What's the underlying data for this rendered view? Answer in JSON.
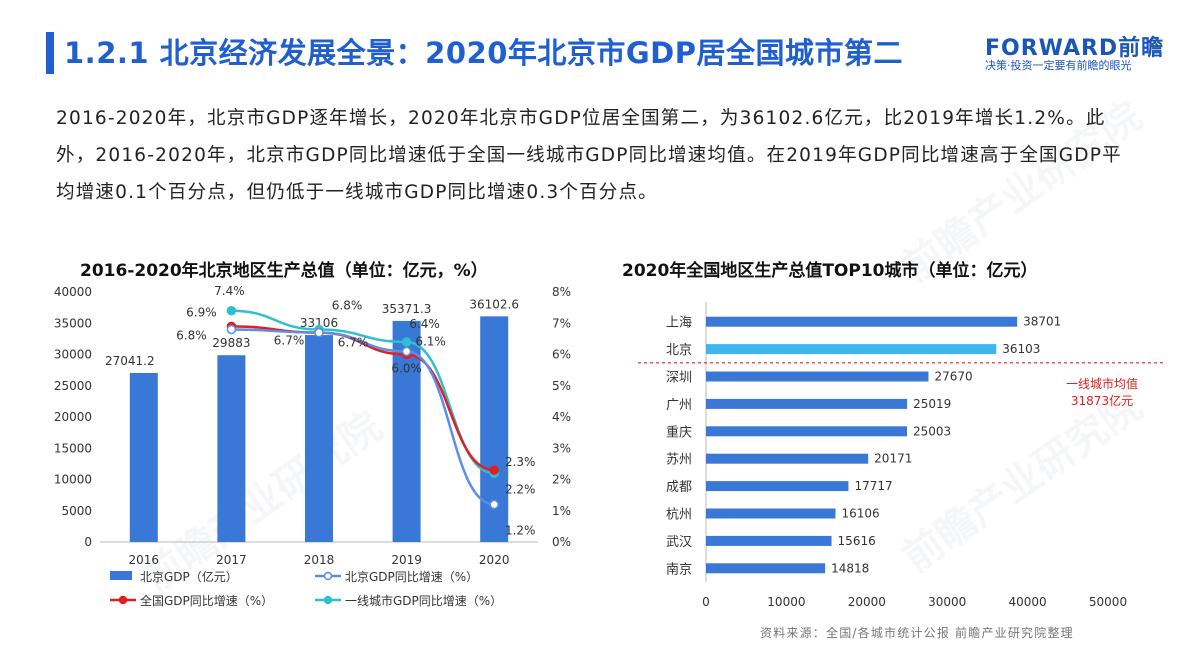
{
  "header": {
    "title": "1.2.1 北京经济发展全景：2020年北京市GDP居全国城市第二",
    "logo": "FORWARD前瞻",
    "slogan": "决策·投资一定要有前瞻的眼光"
  },
  "summary": "2016-2020年，北京市GDP逐年增长，2020年北京市GDP位居全国第二，为36102.6亿元，比2019年增长1.2%。此外，2016-2020年，北京市GDP同比增速低于全国一线城市GDP同比增速均值。在2019年GDP同比增速高于全国GDP平均增速0.1个百分点，但仍低于一线城市GDP同比增速0.3个百分点。",
  "watermark": "前瞻产业研究院",
  "source": "资料来源：全国/各城市统计公报 前瞻产业研究院整理",
  "colors": {
    "accent": "#1f5fd0",
    "bar": "#3a78d8",
    "beijing_bar": "#3fb6ef",
    "national": "#e02020",
    "tier1": "#2fc0d0",
    "avg_line": "#e02020"
  },
  "chart_data": [
    {
      "type": "bar",
      "title": "2016-2020年北京地区生产总值（单位：亿元，%）",
      "categories": [
        "2016",
        "2017",
        "2018",
        "2019",
        "2020"
      ],
      "ylim": [
        0,
        40000
      ],
      "yticks": [
        "0",
        "5000",
        "10000",
        "15000",
        "20000",
        "25000",
        "30000",
        "35000",
        "40000"
      ],
      "y2lim": [
        0,
        8
      ],
      "y2ticks": [
        "0%",
        "1%",
        "2%",
        "3%",
        "4%",
        "5%",
        "6%",
        "7%",
        "8%"
      ],
      "series": [
        {
          "name": "北京GDP（亿元）",
          "kind": "bar",
          "values": [
            27041.2,
            29883,
            33106,
            35371.3,
            36102.6
          ],
          "labels": [
            "27041.2",
            "29883",
            "33106",
            "35371.3",
            "36102.6"
          ]
        },
        {
          "name": "北京GDP同比增速（%）",
          "kind": "line",
          "axis": "right",
          "values": [
            null,
            6.8,
            6.7,
            6.1,
            1.2
          ],
          "labels": [
            "",
            "6.8%",
            "6.7%",
            "6.1%",
            "1.2%"
          ]
        },
        {
          "name": "全国GDP同比增速（%）",
          "kind": "line",
          "axis": "right",
          "values": [
            null,
            6.9,
            6.7,
            6.0,
            2.3
          ],
          "labels": [
            "",
            "6.9%",
            "6.7%",
            "6.0%",
            "2.3%"
          ]
        },
        {
          "name": "一线城市GDP同比增速（%）",
          "kind": "line",
          "axis": "right",
          "values": [
            null,
            7.4,
            6.8,
            6.4,
            2.2
          ],
          "labels": [
            "",
            "7.4%",
            "6.8%",
            "6.4%",
            "2.2%"
          ]
        }
      ],
      "legend": "bottom"
    },
    {
      "type": "bar",
      "orientation": "horizontal",
      "title": "2020年全国地区生产总值TOP10城市（单位：亿元）",
      "categories": [
        "上海",
        "北京",
        "深圳",
        "广州",
        "重庆",
        "苏州",
        "成都",
        "杭州",
        "武汉",
        "南京"
      ],
      "values": [
        38701,
        36103,
        27670,
        25019,
        25003,
        20171,
        17717,
        16106,
        15616,
        14818
      ],
      "labels": [
        "38701",
        "36103",
        "27670",
        "25019",
        "25003",
        "20171",
        "17717",
        "16106",
        "15616",
        "14818"
      ],
      "xlim": [
        0,
        50000
      ],
      "xticks": [
        "0",
        "10000",
        "20000",
        "30000",
        "40000",
        "50000"
      ],
      "highlight": "北京",
      "annotation": {
        "line1": "一线城市均值",
        "line2": "31873亿元"
      }
    }
  ]
}
